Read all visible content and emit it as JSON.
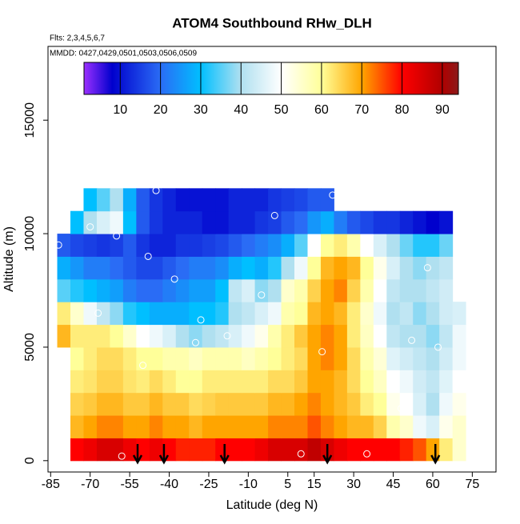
{
  "chart_data": {
    "type": "heatmap",
    "title": "ATOM4 Southbound RHw_DLH",
    "subtitle": "Flts: 2,3,4,5,6,7",
    "annotation": "MMDD: 0427,0429,0501,0503,0506,0509",
    "x_label": "Latitude (deg N)",
    "y_label": "Altitude (m)",
    "xlim": [
      -86,
      84
    ],
    "ylim": [
      -500,
      18250
    ],
    "xticks": [
      -85,
      -70,
      -55,
      -40,
      -25,
      -10,
      5,
      15,
      30,
      45,
      60,
      75
    ],
    "yticks": [
      0,
      5000,
      10000,
      15000
    ],
    "x": [
      -80,
      -75,
      -70,
      -65,
      -60,
      -55,
      -50,
      -45,
      -40,
      -35,
      -30,
      -25,
      -20,
      -15,
      -10,
      -5,
      0,
      5,
      10,
      15,
      20,
      25,
      30,
      35,
      40,
      45,
      50,
      55,
      60,
      65,
      70
    ],
    "y": [
      0,
      1000,
      2000,
      3000,
      4000,
      5000,
      6000,
      7000,
      8000,
      9000,
      10000,
      11000
    ],
    "values": [
      [
        null,
        80,
        82,
        85,
        85,
        82,
        80,
        82,
        80,
        78,
        78,
        78,
        80,
        80,
        80,
        82,
        85,
        85,
        85,
        88,
        85,
        82,
        80,
        80,
        80,
        80,
        78,
        75,
        70,
        62,
        55
      ],
      [
        null,
        68,
        70,
        72,
        72,
        70,
        70,
        72,
        70,
        70,
        68,
        70,
        70,
        70,
        70,
        70,
        72,
        72,
        72,
        75,
        72,
        70,
        68,
        68,
        65,
        58,
        55,
        48,
        45,
        52,
        55
      ],
      [
        null,
        65,
        66,
        68,
        68,
        66,
        66,
        68,
        66,
        66,
        64,
        65,
        66,
        66,
        66,
        66,
        68,
        68,
        70,
        72,
        70,
        68,
        66,
        62,
        60,
        52,
        50,
        45,
        40,
        48,
        52
      ],
      [
        null,
        62,
        63,
        65,
        65,
        63,
        62,
        64,
        62,
        60,
        60,
        62,
        62,
        62,
        62,
        62,
        64,
        64,
        66,
        70,
        70,
        68,
        64,
        60,
        56,
        50,
        48,
        44,
        42,
        46,
        50
      ],
      [
        null,
        60,
        62,
        64,
        64,
        62,
        60,
        60,
        58,
        58,
        56,
        58,
        58,
        58,
        56,
        58,
        60,
        62,
        64,
        70,
        72,
        70,
        64,
        58,
        54,
        46,
        44,
        42,
        40,
        44,
        48
      ],
      [
        68,
        62,
        62,
        62,
        60,
        55,
        50,
        48,
        45,
        40,
        38,
        40,
        42,
        45,
        48,
        52,
        58,
        62,
        66,
        70,
        72,
        70,
        62,
        56,
        50,
        42,
        40,
        40,
        38,
        42,
        48
      ],
      [
        62,
        55,
        48,
        42,
        38,
        32,
        30,
        28,
        28,
        28,
        30,
        30,
        32,
        40,
        42,
        45,
        48,
        58,
        60,
        68,
        70,
        68,
        62,
        55,
        48,
        40,
        42,
        38,
        40,
        44,
        45
      ],
      [
        35,
        32,
        30,
        28,
        26,
        22,
        20,
        20,
        22,
        24,
        26,
        26,
        30,
        42,
        45,
        38,
        40,
        55,
        58,
        65,
        70,
        72,
        65,
        58,
        50,
        42,
        40,
        40,
        42,
        44,
        null
      ],
      [
        28,
        25,
        22,
        22,
        20,
        18,
        16,
        16,
        18,
        20,
        22,
        22,
        24,
        28,
        30,
        28,
        32,
        40,
        48,
        60,
        68,
        70,
        68,
        60,
        52,
        45,
        40,
        38,
        40,
        42,
        null
      ],
      [
        18,
        16,
        15,
        14,
        15,
        18,
        14,
        12,
        12,
        14,
        14,
        15,
        16,
        18,
        20,
        22,
        24,
        28,
        35,
        50,
        60,
        62,
        58,
        50,
        45,
        40,
        36,
        32,
        32,
        36,
        null
      ],
      [
        null,
        30,
        40,
        45,
        48,
        30,
        18,
        14,
        12,
        12,
        12,
        10,
        10,
        12,
        12,
        14,
        15,
        18,
        20,
        25,
        28,
        22,
        18,
        16,
        14,
        14,
        12,
        10,
        8,
        10,
        null
      ],
      [
        null,
        null,
        30,
        35,
        40,
        28,
        18,
        14,
        12,
        10,
        10,
        10,
        10,
        12,
        12,
        12,
        14,
        15,
        16,
        18,
        18,
        null,
        null,
        null,
        null,
        null,
        null,
        null,
        null,
        null,
        null
      ]
    ],
    "points": {
      "x": [
        -82,
        -70,
        -67,
        -58,
        -50,
        -48,
        -45,
        -38,
        -28,
        -18,
        -5,
        0,
        18,
        22,
        35,
        52,
        58,
        62,
        -60,
        -30,
        10,
        48
      ],
      "y": [
        9500,
        10300,
        6500,
        200,
        4200,
        9000,
        11900,
        8000,
        6200,
        5500,
        7300,
        10800,
        4800,
        11700,
        300,
        5300,
        8500,
        5000,
        9900,
        5200,
        300,
        2300
      ],
      "color": "#ffffff"
    },
    "profile_markers": [
      -52,
      -42,
      -19,
      20,
      61
    ],
    "zlim": [
      1,
      94
    ],
    "zticks": [
      10,
      20,
      30,
      40,
      50,
      60,
      70,
      80,
      90
    ],
    "colorscale": [
      [
        1,
        "#9b30ff"
      ],
      [
        8,
        "#0000cd"
      ],
      [
        20,
        "#2a6cf5"
      ],
      [
        30,
        "#00bfff"
      ],
      [
        40,
        "#b0e0f0"
      ],
      [
        50,
        "#ffffff"
      ],
      [
        60,
        "#ffff99"
      ],
      [
        70,
        "#ffa500"
      ],
      [
        80,
        "#ff0000"
      ],
      [
        90,
        "#b00000"
      ],
      [
        94,
        "#8b1a1a"
      ]
    ]
  }
}
